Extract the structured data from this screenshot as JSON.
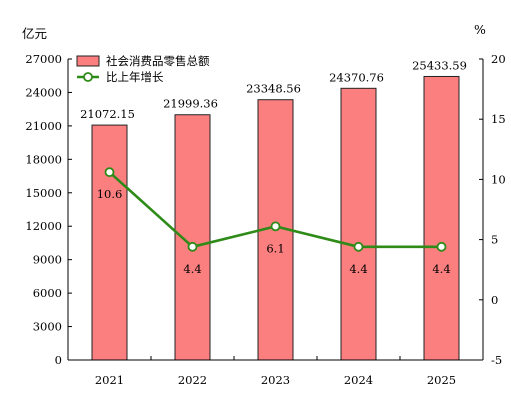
{
  "chart_data": {
    "type": "bar+line",
    "categories": [
      "2021",
      "2022",
      "2023",
      "2024",
      "2025"
    ],
    "series": [
      {
        "name": "社会消费品零售总额",
        "kind": "bar",
        "axis": "left",
        "values": [
          21072.15,
          21999.36,
          23348.56,
          24370.76,
          25433.59
        ],
        "labels": [
          "21072.15",
          "21999.36",
          "23348.56",
          "24370.76",
          "25433.59"
        ]
      },
      {
        "name": "比上年增长",
        "kind": "line",
        "axis": "right",
        "values": [
          10.6,
          4.4,
          6.1,
          4.4,
          4.4
        ],
        "labels": [
          "10.6",
          "4.4",
          "6.1",
          "4.4",
          "4.4"
        ]
      }
    ],
    "left_axis": {
      "unit": "亿元",
      "ylim": [
        0,
        27000
      ],
      "ticks": [
        0,
        3000,
        6000,
        9000,
        12000,
        15000,
        18000,
        21000,
        24000,
        27000
      ]
    },
    "right_axis": {
      "unit": "%",
      "ylim": [
        -5,
        20
      ],
      "ticks": [
        -5,
        0,
        5,
        10,
        15,
        20
      ]
    },
    "legend_position": "top-left",
    "grid": false,
    "colors": {
      "bar_fill": "#fb7f7f",
      "bar_stroke": "#222222",
      "line": "#2e8b18",
      "marker_fill": "#ffffff",
      "axis": "#000000"
    }
  }
}
